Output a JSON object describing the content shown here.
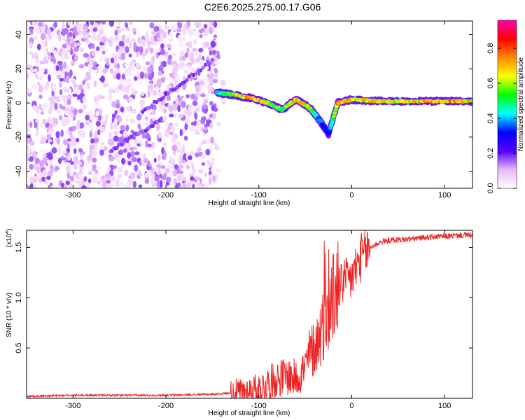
{
  "title": "C2E6.2025.275.00.17.G06",
  "chart_data": [
    {
      "type": "heatmap",
      "title": "C2E6.2025.275.00.17.G06",
      "xlabel": "Height of straight line (km)",
      "ylabel": "Frequency (Hz)",
      "xlim": [
        -350,
        130
      ],
      "ylim": [
        -50,
        48
      ],
      "xticks": [
        -300,
        -200,
        -100,
        0,
        100
      ],
      "yticks": [
        -40,
        -20,
        0,
        20,
        40
      ],
      "colorbar": {
        "label": "Normalized spectral amplitude",
        "range": [
          0,
          0.96
        ],
        "ticks": [
          0.0,
          0.2,
          0.4,
          0.6,
          0.8
        ],
        "stops": [
          "#ffffff",
          "#e8b8f8",
          "#5500ff",
          "#0000ff",
          "#00ffff",
          "#00ff00",
          "#ffff00",
          "#ff8800",
          "#ff0000",
          "#ff00aa"
        ]
      },
      "features": [
        {
          "name": "noise-field",
          "x_range": [
            -350,
            -145
          ],
          "f_range": [
            -50,
            48
          ]
        },
        {
          "name": "rising-track-upper",
          "x": [
            -225,
            -150
          ],
          "f": [
            -5,
            25
          ]
        },
        {
          "name": "rising-track-lower",
          "x": [
            -260,
            -205
          ],
          "f": [
            -28,
            -10
          ]
        },
        {
          "name": "main-trace",
          "x": [
            -145,
            -130,
            -110,
            -90,
            -75,
            -60,
            -45,
            -35,
            -25,
            -15,
            0,
            30,
            60,
            100,
            130
          ],
          "f": [
            6,
            5,
            3,
            0,
            -4,
            2,
            -3,
            -10,
            -18,
            0,
            2,
            1,
            1,
            1,
            1
          ],
          "amplitude": [
            0.45,
            0.6,
            0.85,
            0.7,
            0.55,
            0.8,
            0.65,
            0.4,
            0.3,
            0.8,
            0.75,
            0.7,
            0.7,
            0.8,
            0.75
          ]
        }
      ]
    },
    {
      "type": "line",
      "xlabel": "Height of straight line (km)",
      "ylabel": "SNR (10 * v/v)",
      "multiplier_label": "(x10",
      "multiplier_exp": "4",
      "xlim": [
        -350,
        130
      ],
      "ylim": [
        0,
        1.67
      ],
      "xticks": [
        -300,
        -200,
        -100,
        0,
        100
      ],
      "yticks": [
        0.5,
        1.0,
        1.5
      ],
      "ytick_labels": [
        "0.5",
        "1.0",
        "1.5"
      ],
      "color": "#ee2222",
      "x": [
        -350,
        -300,
        -250,
        -200,
        -150,
        -120,
        -100,
        -90,
        -80,
        -70,
        -60,
        -50,
        -45,
        -40,
        -35,
        -30,
        -25,
        -20,
        -15,
        -10,
        -5,
        0,
        5,
        10,
        15,
        20,
        30,
        40,
        60,
        80,
        100,
        120,
        130
      ],
      "y": [
        0.02,
        0.03,
        0.03,
        0.03,
        0.04,
        0.06,
        0.1,
        0.15,
        0.2,
        0.22,
        0.2,
        0.3,
        0.45,
        0.5,
        0.62,
        0.75,
        0.85,
        1.0,
        1.1,
        1.15,
        1.15,
        1.2,
        1.3,
        1.4,
        1.45,
        1.5,
        1.55,
        1.57,
        1.58,
        1.6,
        1.61,
        1.62,
        1.62
      ]
    }
  ]
}
